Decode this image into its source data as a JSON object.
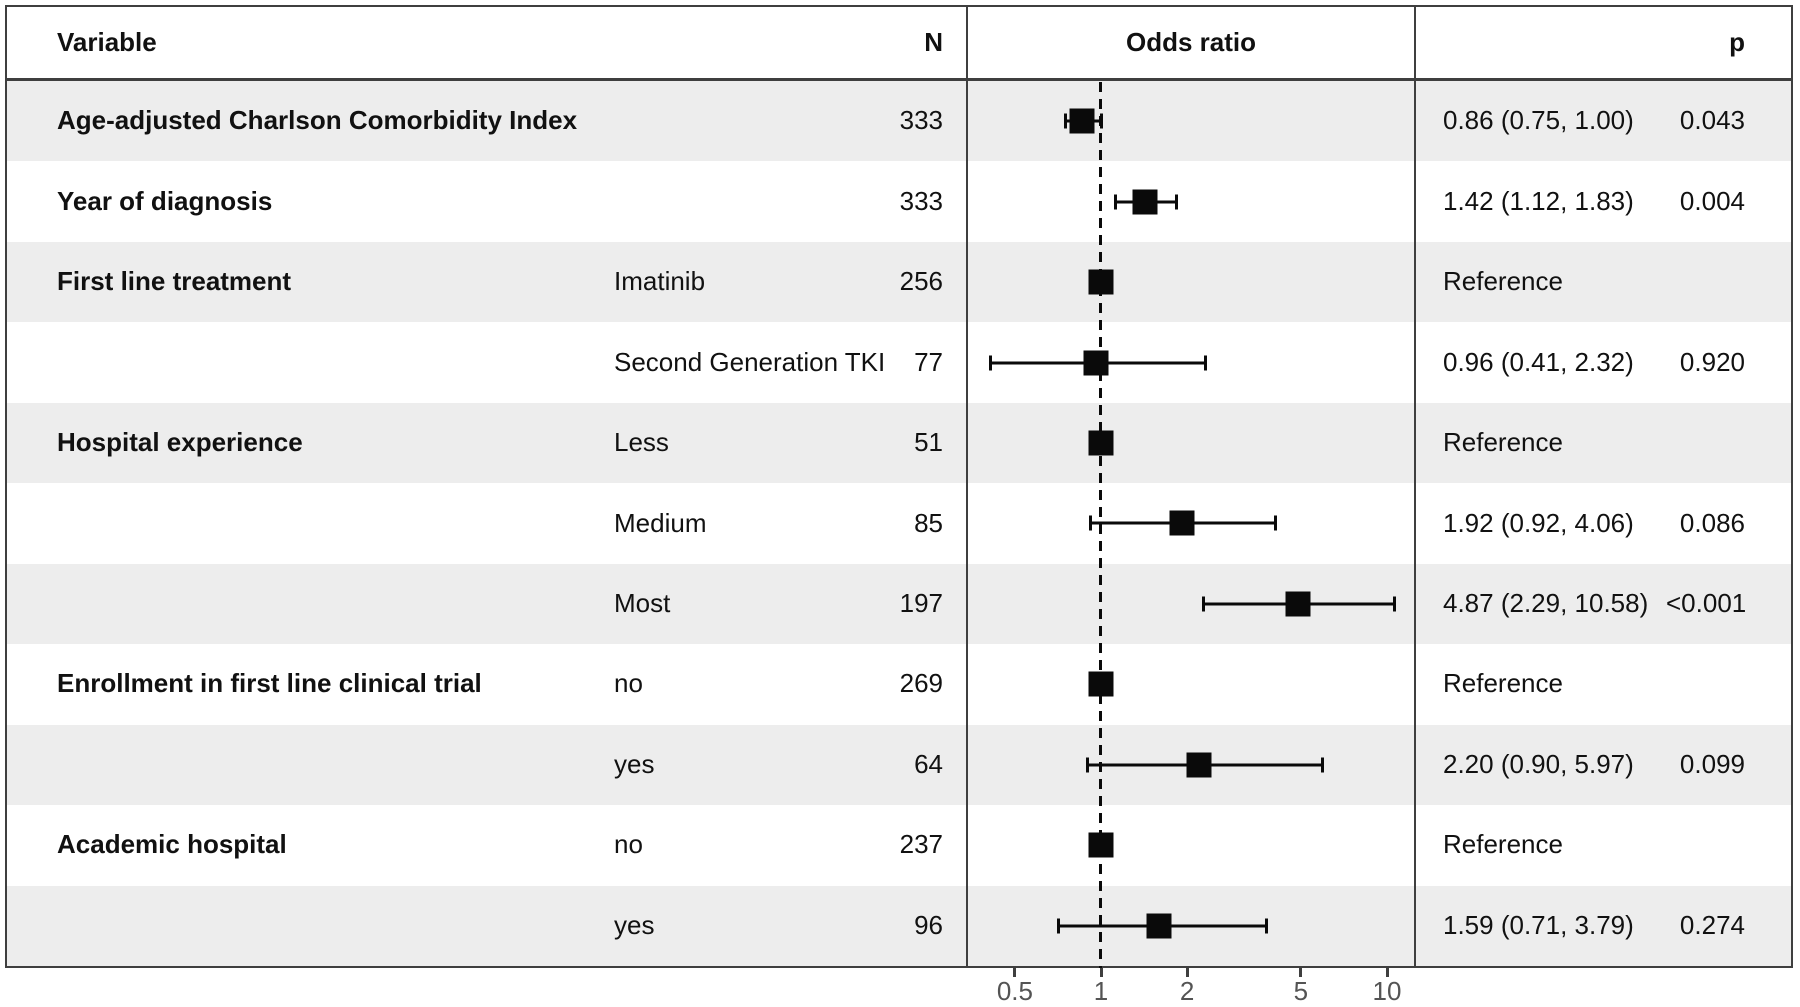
{
  "figure": {
    "background": "#ffffff",
    "stripe_color": "#ededed",
    "border_color": "#3f3f3f",
    "text_color": "#111111",
    "axis_text_color": "#545454",
    "marker_color": "#0a0a0a"
  },
  "header": {
    "variable": "Variable",
    "n": "N",
    "odds_ratio": "Odds ratio",
    "p": "p"
  },
  "chart_data": {
    "type": "forest",
    "x_scale": "log10",
    "x_ticks": [
      "0.5",
      "1",
      "2",
      "5",
      "10"
    ],
    "x_tick_values": [
      0.5,
      1,
      2,
      5,
      10
    ],
    "x_range": [
      0.34,
      12.5
    ],
    "reference_line": 1,
    "rows": [
      {
        "variable": "Age-adjusted Charlson Comorbidity Index",
        "level": "",
        "n": "333",
        "or": 0.86,
        "ci_low": 0.75,
        "ci_high": 1.0,
        "or_text": "0.86 (0.75, 1.00)",
        "p": "0.043",
        "shaded": true
      },
      {
        "variable": "Year of diagnosis",
        "level": "",
        "n": "333",
        "or": 1.42,
        "ci_low": 1.12,
        "ci_high": 1.83,
        "or_text": "1.42 (1.12, 1.83)",
        "p": "0.004",
        "shaded": false
      },
      {
        "variable": "First line treatment",
        "level": "Imatinib",
        "n": "256",
        "or": 1,
        "ci_low": null,
        "ci_high": null,
        "or_text": "Reference",
        "p": "",
        "shaded": true
      },
      {
        "variable": "",
        "level": "Second Generation TKI",
        "n": "77",
        "or": 0.96,
        "ci_low": 0.41,
        "ci_high": 2.32,
        "or_text": "0.96 (0.41, 2.32)",
        "p": "0.920",
        "shaded": false
      },
      {
        "variable": "Hospital experience",
        "level": "Less",
        "n": "51",
        "or": 1,
        "ci_low": null,
        "ci_high": null,
        "or_text": "Reference",
        "p": "",
        "shaded": true
      },
      {
        "variable": "",
        "level": "Medium",
        "n": "85",
        "or": 1.92,
        "ci_low": 0.92,
        "ci_high": 4.06,
        "or_text": "1.92 (0.92, 4.06)",
        "p": "0.086",
        "shaded": false
      },
      {
        "variable": "",
        "level": "Most",
        "n": "197",
        "or": 4.87,
        "ci_low": 2.29,
        "ci_high": 10.58,
        "or_text": "4.87 (2.29, 10.58)",
        "p": "<0.001",
        "shaded": true
      },
      {
        "variable": "Enrollment in first line clinical trial",
        "level": "no",
        "n": "269",
        "or": 1,
        "ci_low": null,
        "ci_high": null,
        "or_text": "Reference",
        "p": "",
        "shaded": false
      },
      {
        "variable": "",
        "level": "yes",
        "n": "64",
        "or": 2.2,
        "ci_low": 0.9,
        "ci_high": 5.97,
        "or_text": "2.20 (0.90, 5.97)",
        "p": "0.099",
        "shaded": true
      },
      {
        "variable": "Academic hospital",
        "level": "no",
        "n": "237",
        "or": 1,
        "ci_low": null,
        "ci_high": null,
        "or_text": "Reference",
        "p": "",
        "shaded": false
      },
      {
        "variable": "",
        "level": "yes",
        "n": "96",
        "or": 1.59,
        "ci_low": 0.71,
        "ci_high": 3.79,
        "or_text": "1.59 (0.71, 3.79)",
        "p": "0.274",
        "shaded": true
      }
    ]
  }
}
